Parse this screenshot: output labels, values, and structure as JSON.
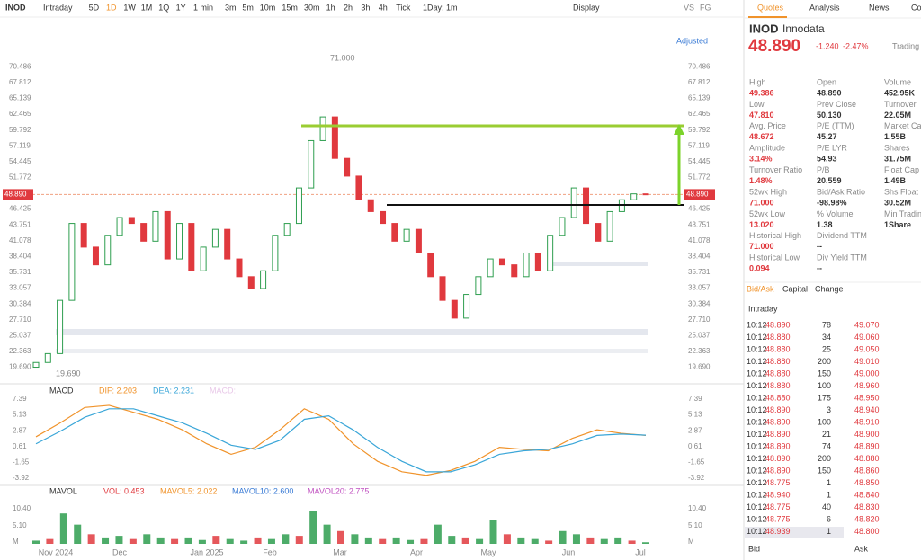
{
  "toolbar": {
    "symbol": "INOD",
    "periods": [
      "Intraday",
      "5D",
      "1D",
      "1W",
      "1M",
      "1Q",
      "1Y",
      "1 min",
      "3m",
      "5m",
      "10m",
      "15m",
      "30m",
      "1h",
      "2h",
      "3h",
      "4h",
      "Tick",
      "1Day: 1m"
    ],
    "display": "Display",
    "extra": [
      "VS",
      "FG"
    ]
  },
  "price_chart": {
    "adjusted": "Adjusted",
    "ylim": [
      17.5,
      72.5
    ],
    "yticks": [
      70.486,
      67.812,
      65.139,
      62.465,
      59.792,
      57.119,
      54.445,
      51.772,
      46.425,
      43.751,
      41.078,
      38.404,
      35.731,
      33.057,
      30.384,
      {
        "value": 27.71,
        "label": "27.710"
      },
      25.037,
      22.363,
      {
        "value": 19.69,
        "label": "19.690"
      }
    ],
    "last": {
      "value": 48.89,
      "label": "48.890"
    },
    "high_note": "71.000",
    "low_note": "19.690",
    "x_labels": [
      "Nov 2024",
      "Dec",
      "Jan 2025",
      "Feb",
      "Mar",
      "Apr",
      "May",
      "Jun",
      "Jul"
    ],
    "first_open": 19.7,
    "closes": [
      20.5,
      22,
      31,
      44,
      40,
      37,
      42,
      45,
      44,
      41,
      46,
      38,
      44,
      36,
      40,
      43,
      38,
      35,
      33,
      36,
      42,
      44,
      50,
      58,
      62,
      55,
      52,
      48,
      46,
      44,
      41,
      43,
      39,
      35,
      31,
      28,
      32,
      35,
      38,
      37,
      35,
      39,
      36,
      42,
      45,
      50,
      44,
      41,
      46,
      48,
      49,
      48.89
    ]
  },
  "macd": {
    "title": "MACD",
    "dif": "DIF: 2.203",
    "dea": "DEA: 2.231",
    "macd": "MACD:",
    "ylim": [
      -5,
      9
    ],
    "yticks": [
      7.39,
      5.13,
      2.87,
      0.61,
      -1.65,
      -3.92
    ],
    "dif_values": [
      2,
      4,
      6.2,
      6.5,
      5.5,
      4.5,
      3,
      1,
      -0.5,
      0.5,
      3,
      6,
      4.5,
      1,
      -1.5,
      -3,
      -3.5,
      -2.8,
      -1.5,
      0.5,
      0.2,
      0,
      1.8,
      3,
      2.5,
      2.2
    ],
    "dea_values": [
      1,
      2.8,
      4.8,
      6,
      6,
      5,
      4,
      2.5,
      0.8,
      0.2,
      1.5,
      4.5,
      5,
      3,
      0.5,
      -1.5,
      -3,
      -3,
      -2,
      -0.5,
      0,
      0.2,
      1,
      2.2,
      2.4,
      2.23
    ]
  },
  "mavol": {
    "title": "MAVOL",
    "vol": "VOL: 0.453",
    "ma5": "MAVOL5: 2.022",
    "ma10": "MAVOL10: 2.600",
    "ma20": "MAVOL20: 2.775",
    "ylim": [
      0,
      12
    ],
    "yticks": [
      {
        "value": 10.4,
        "label": "10.40"
      },
      {
        "value": 5.1,
        "label": "5.10"
      },
      {
        "value": 0,
        "label": "M"
      }
    ],
    "values": [
      1,
      1.5,
      9.5,
      6,
      3,
      2,
      2.5,
      1.5,
      3,
      2,
      1.5,
      2,
      1.2,
      2.5,
      1.5,
      1,
      2,
      1.5,
      3,
      2.5,
      10.4,
      6,
      4,
      3,
      2,
      1.5,
      2,
      1.2,
      1.5,
      6,
      2.5,
      2,
      1.5,
      7.5,
      3,
      2,
      1.5,
      1,
      4,
      3,
      2,
      1.5,
      2,
      1,
      0.5
    ]
  },
  "quote": {
    "tabs": [
      "Quotes",
      "Analysis",
      "News",
      "Co"
    ],
    "symbol": "INOD",
    "name": "Innodata",
    "price": "48.890",
    "change": "-1.240",
    "change_pct": "-2.47%",
    "trading": "Trading C",
    "stats": [
      [
        "High",
        "49.386",
        "Open",
        "48.890",
        "Volume",
        "452.95K"
      ],
      [
        "Low",
        "47.810",
        "Prev Close",
        "50.130",
        "Turnover",
        "22.05M"
      ],
      [
        "Avg. Price",
        "48.672",
        "P/E (TTM)",
        "45.27",
        "Market Ca",
        "1.55B"
      ],
      [
        "Amplitude",
        "3.14%",
        "P/E LYR",
        "54.93",
        "Shares",
        "31.75M"
      ],
      [
        "Turnover Ratio",
        "1.48%",
        "P/B",
        "20.559",
        "Float Cap",
        "1.49B"
      ],
      [
        "52wk High",
        "71.000",
        "Bid/Ask Ratio",
        "-98.98%",
        "Shs Float",
        "30.52M"
      ],
      [
        "52wk Low",
        "13.020",
        "% Volume",
        "1.38",
        "Min Tradin",
        "1Share"
      ],
      [
        "Historical High",
        "71.000",
        "Dividend TTM",
        "--"
      ],
      [
        "Historical Low",
        "0.094",
        "Div Yield TTM",
        "--"
      ]
    ],
    "sub_tabs": [
      "Bid/Ask",
      "Capital",
      "Change"
    ],
    "intraday": "Intraday",
    "ticks": [
      [
        "10:12",
        "48.890",
        "78"
      ],
      [
        "10:12",
        "48.880",
        "34"
      ],
      [
        "10:12",
        "48.880",
        "25"
      ],
      [
        "10:12",
        "48.880",
        "200"
      ],
      [
        "10:12",
        "48.880",
        "150"
      ],
      [
        "10:12",
        "48.880",
        "100"
      ],
      [
        "10:12",
        "48.880",
        "175"
      ],
      [
        "10:12",
        "48.890",
        "3"
      ],
      [
        "10:12",
        "48.890",
        "100"
      ],
      [
        "10:12",
        "48.890",
        "21"
      ],
      [
        "10:12",
        "48.890",
        "74"
      ],
      [
        "10:12",
        "48.890",
        "200"
      ],
      [
        "10:12",
        "48.890",
        "150"
      ],
      [
        "10:12",
        "48.775",
        "1"
      ],
      [
        "10:12",
        "48.940",
        "1"
      ],
      [
        "10:12",
        "48.775",
        "40"
      ],
      [
        "10:12",
        "48.775",
        "6"
      ],
      [
        "10:12",
        "48.939",
        "1"
      ]
    ],
    "ladder": [
      "49.070",
      "49.060",
      "49.050",
      "49.010",
      "49.000",
      "48.960",
      "48.950",
      "48.940",
      "48.910",
      "48.900",
      "48.890",
      "48.880",
      "48.860",
      "48.850",
      "48.840",
      "48.830",
      "48.820",
      "48.800"
    ],
    "bid": "Bid",
    "ask": "Ask"
  }
}
